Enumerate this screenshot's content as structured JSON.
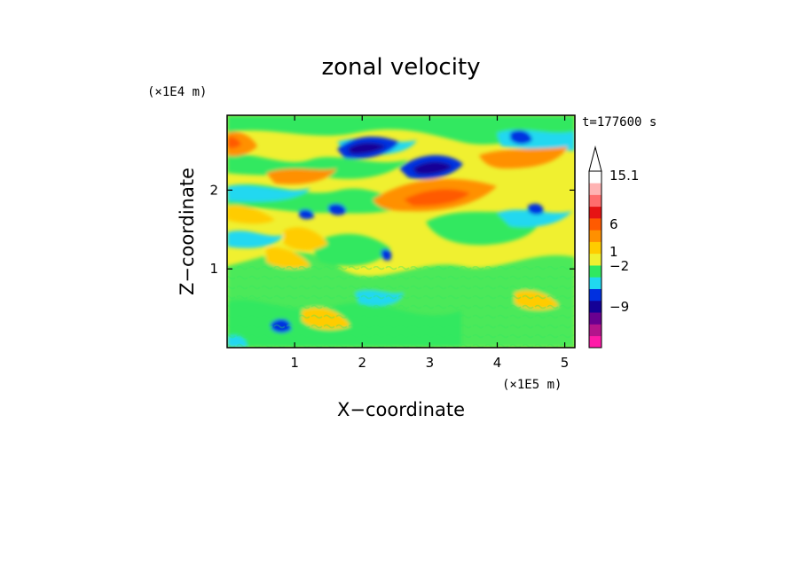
{
  "chart_data": {
    "type": "heatmap",
    "title": "zonal velocity",
    "xlabel": "X−coordinate",
    "ylabel": "Z−coordinate",
    "x_unit": "(×1E5 m)",
    "y_unit": "(×1E4 m)",
    "time_label": "t=177600 s",
    "xlim": [
      0,
      5.15
    ],
    "ylim": [
      0,
      2.95
    ],
    "x_ticks": [
      "1",
      "2",
      "3",
      "4",
      "5"
    ],
    "y_ticks": [
      "1",
      "2"
    ],
    "colorbar_labels": [
      "15.1",
      "6",
      "1",
      "−2",
      "−9"
    ],
    "colorbar_colors": [
      "#ff1aa8",
      "#b4148c",
      "#6a0090",
      "#140096",
      "#0030e0",
      "#20d8f0",
      "#30e860",
      "#f0f030",
      "#ffcc00",
      "#ff9000",
      "#ff5a00",
      "#e61414",
      "#ff6e6e",
      "#ffb4b4",
      "#ffffff"
    ],
    "features": [
      {
        "x": 1.9,
        "z": 2.47,
        "value": -8
      },
      {
        "x": 3.0,
        "z": 2.28,
        "value": -8
      },
      {
        "x": 2.8,
        "z": 1.9,
        "value": 6
      },
      {
        "x": 0.15,
        "z": 2.6,
        "value": 6
      },
      {
        "x": 4.3,
        "z": 2.5,
        "value": 5
      },
      {
        "x": 0.95,
        "z": 0.3,
        "value": -6
      }
    ]
  }
}
